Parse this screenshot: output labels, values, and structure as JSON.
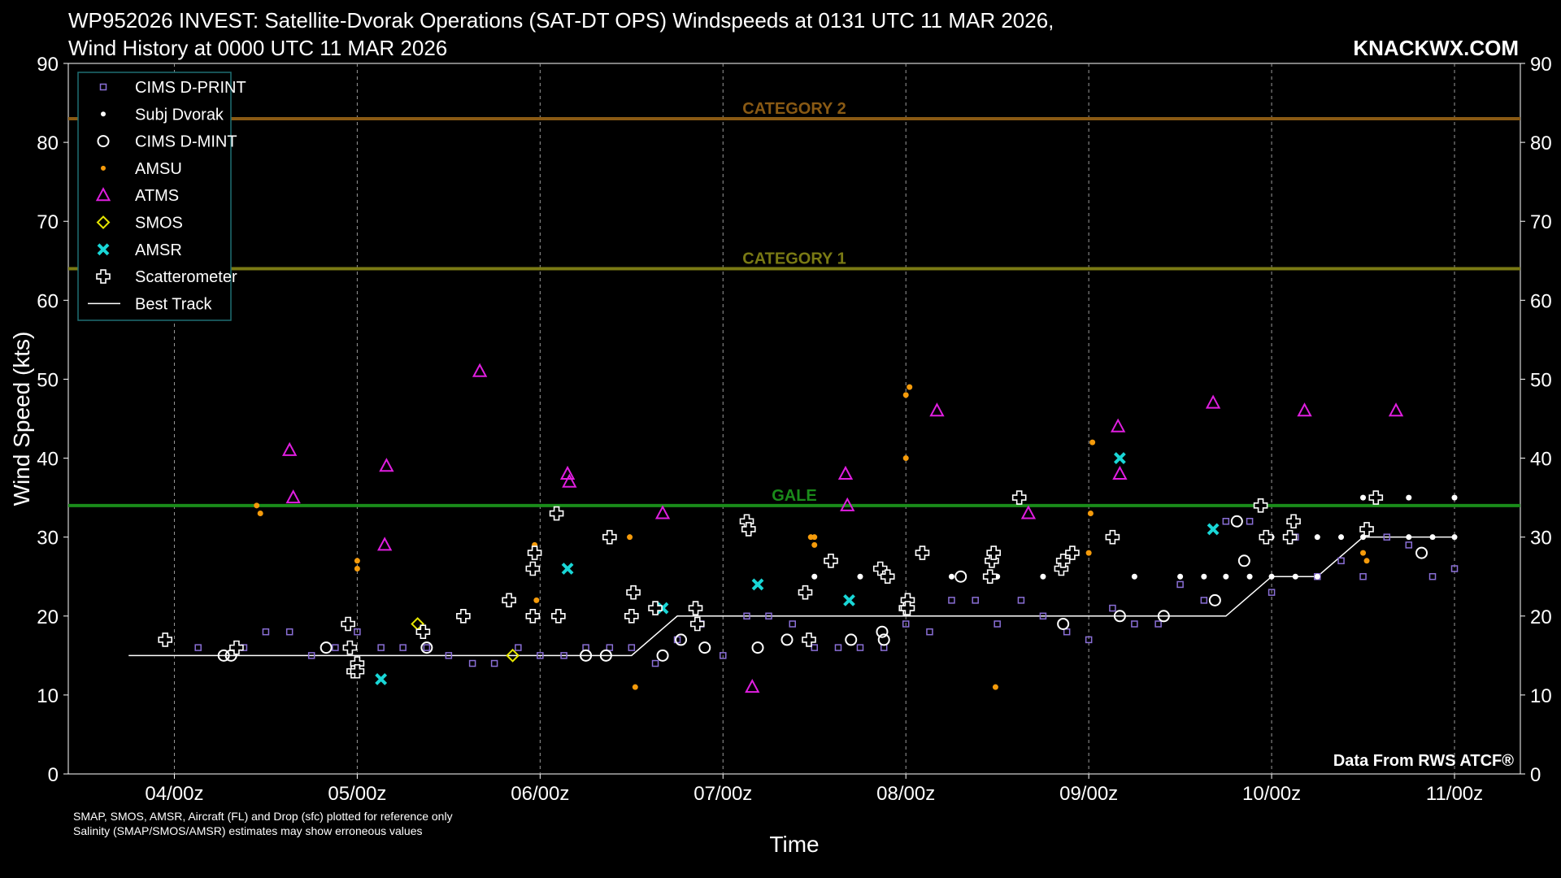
{
  "header": {
    "title_line1": "WP952026 INVEST: Satellite-Dvorak Operations (SAT-DT OPS) Windspeeds at 0131 UTC 11 MAR 2026,",
    "title_line2": "Wind History at 0000 UTC 11 MAR 2026",
    "brand": "KNACKWX.COM"
  },
  "footer": {
    "note_line1": "SMAP, SMOS, AMSR, Aircraft (FL) and Drop (sfc) plotted for reference only",
    "note_line2": "Salinity (SMAP/SMOS/AMSR) estimates may show erroneous values",
    "credit": "Data From RWS ATCF®"
  },
  "colors": {
    "background": "#000000",
    "cims_dprint": "#8a6fd6",
    "subj_dvorak": "#ffffff",
    "cims_dmint": "#ffffff",
    "amsu": "#f59b0b",
    "atms": "#e01ee0",
    "smos": "#e6e600",
    "amsr": "#19d6d6",
    "scat": "#ffffff",
    "best_track": "#ffffff",
    "cat2": "#8a5a14",
    "cat1": "#7a7a14",
    "gale": "#1a8c1a",
    "legend_border": "#1f6f73"
  },
  "chart_data": {
    "type": "scatter",
    "xlabel": "Time",
    "ylabel": "Wind Speed (kts)",
    "x_unit": "days (04/00z = 4.0)",
    "xlim": [
      3.42,
      11.36
    ],
    "ylim": [
      0,
      90
    ],
    "x_ticks": [
      4,
      5,
      6,
      7,
      8,
      9,
      10,
      11
    ],
    "x_tick_labels": [
      "04/00z",
      "05/00z",
      "06/00z",
      "07/00z",
      "08/00z",
      "09/00z",
      "10/00z",
      "11/00z"
    ],
    "y_ticks": [
      0,
      10,
      20,
      30,
      40,
      50,
      60,
      70,
      80,
      90
    ],
    "grid": "vertical dashed at day boundaries",
    "legend_position": "top-left",
    "thresholds": [
      {
        "label": "CATEGORY 2",
        "y": 83,
        "color_key": "cat2"
      },
      {
        "label": "CATEGORY 1",
        "y": 64,
        "color_key": "cat1"
      },
      {
        "label": "GALE",
        "y": 34,
        "color_key": "gale"
      }
    ],
    "series": [
      {
        "name": "CIMS D-PRINT",
        "marker": "square",
        "color_key": "cims_dprint",
        "points": [
          [
            4.13,
            16
          ],
          [
            4.38,
            16
          ],
          [
            4.5,
            18
          ],
          [
            4.63,
            18
          ],
          [
            4.75,
            15
          ],
          [
            4.88,
            16
          ],
          [
            5.0,
            18
          ],
          [
            5.13,
            16
          ],
          [
            5.25,
            16
          ],
          [
            5.38,
            16
          ],
          [
            5.5,
            15
          ],
          [
            5.63,
            14
          ],
          [
            5.75,
            14
          ],
          [
            5.88,
            16
          ],
          [
            6.0,
            15
          ],
          [
            6.13,
            15
          ],
          [
            6.25,
            16
          ],
          [
            6.38,
            16
          ],
          [
            6.5,
            16
          ],
          [
            6.63,
            14
          ],
          [
            6.75,
            17
          ],
          [
            6.88,
            19
          ],
          [
            7.0,
            15
          ],
          [
            7.13,
            20
          ],
          [
            7.25,
            20
          ],
          [
            7.38,
            19
          ],
          [
            7.5,
            16
          ],
          [
            7.63,
            16
          ],
          [
            7.75,
            16
          ],
          [
            7.88,
            16
          ],
          [
            8.0,
            19
          ],
          [
            8.13,
            18
          ],
          [
            8.25,
            22
          ],
          [
            8.38,
            22
          ],
          [
            8.5,
            19
          ],
          [
            8.63,
            22
          ],
          [
            8.75,
            20
          ],
          [
            8.88,
            18
          ],
          [
            9.0,
            17
          ],
          [
            9.13,
            21
          ],
          [
            9.25,
            19
          ],
          [
            9.38,
            19
          ],
          [
            9.5,
            24
          ],
          [
            9.63,
            22
          ],
          [
            9.75,
            32
          ],
          [
            9.88,
            32
          ],
          [
            10.0,
            23
          ],
          [
            10.13,
            30
          ],
          [
            10.25,
            25
          ],
          [
            10.38,
            27
          ],
          [
            10.5,
            25
          ],
          [
            10.63,
            30
          ],
          [
            10.75,
            29
          ],
          [
            10.88,
            25
          ],
          [
            11.0,
            26
          ]
        ]
      },
      {
        "name": "Subj Dvorak",
        "marker": "dot",
        "color_key": "subj_dvorak",
        "points": [
          [
            7.5,
            25
          ],
          [
            7.75,
            25
          ],
          [
            8.25,
            25
          ],
          [
            8.5,
            25
          ],
          [
            8.75,
            25
          ],
          [
            9.25,
            25
          ],
          [
            9.5,
            25
          ],
          [
            9.63,
            25
          ],
          [
            9.75,
            25
          ],
          [
            9.88,
            25
          ],
          [
            10.0,
            30
          ],
          [
            10.0,
            25
          ],
          [
            10.13,
            25
          ],
          [
            10.25,
            30
          ],
          [
            10.25,
            25
          ],
          [
            10.38,
            30
          ],
          [
            10.5,
            35
          ],
          [
            10.5,
            30
          ],
          [
            10.75,
            35
          ],
          [
            10.75,
            30
          ],
          [
            10.88,
            30
          ],
          [
            11.0,
            35
          ],
          [
            11.0,
            30
          ]
        ]
      },
      {
        "name": "CIMS D-MINT",
        "marker": "circle",
        "color_key": "cims_dmint",
        "points": [
          [
            4.27,
            15
          ],
          [
            4.31,
            15
          ],
          [
            4.83,
            16
          ],
          [
            5.38,
            16
          ],
          [
            6.25,
            15
          ],
          [
            6.36,
            15
          ],
          [
            6.67,
            15
          ],
          [
            6.77,
            17
          ],
          [
            6.9,
            16
          ],
          [
            7.19,
            16
          ],
          [
            7.35,
            17
          ],
          [
            7.7,
            17
          ],
          [
            7.87,
            18
          ],
          [
            7.88,
            17
          ],
          [
            8.3,
            25
          ],
          [
            8.86,
            19
          ],
          [
            9.17,
            20
          ],
          [
            9.41,
            20
          ],
          [
            9.69,
            22
          ],
          [
            9.81,
            32
          ],
          [
            9.85,
            27
          ],
          [
            10.82,
            28
          ]
        ]
      },
      {
        "name": "AMSU",
        "marker": "dot",
        "color_key": "amsu",
        "points": [
          [
            4.45,
            34
          ],
          [
            4.47,
            33
          ],
          [
            5.0,
            27
          ],
          [
            5.0,
            26
          ],
          [
            5.97,
            29
          ],
          [
            5.98,
            22
          ],
          [
            6.49,
            30
          ],
          [
            6.52,
            11
          ],
          [
            7.48,
            30
          ],
          [
            7.5,
            30
          ],
          [
            7.5,
            29
          ],
          [
            8.0,
            48
          ],
          [
            8.02,
            49
          ],
          [
            8.0,
            40
          ],
          [
            8.49,
            11
          ],
          [
            9.0,
            28
          ],
          [
            9.01,
            33
          ],
          [
            9.02,
            42
          ],
          [
            10.5,
            28
          ],
          [
            10.52,
            27
          ]
        ]
      },
      {
        "name": "ATMS",
        "marker": "triangle",
        "color_key": "atms",
        "points": [
          [
            4.63,
            41
          ],
          [
            4.65,
            35
          ],
          [
            5.15,
            29
          ],
          [
            5.16,
            39
          ],
          [
            5.67,
            51
          ],
          [
            6.15,
            38
          ],
          [
            6.16,
            37
          ],
          [
            6.67,
            33
          ],
          [
            7.16,
            11
          ],
          [
            7.67,
            38
          ],
          [
            7.68,
            34
          ],
          [
            8.17,
            46
          ],
          [
            8.67,
            33
          ],
          [
            9.16,
            44
          ],
          [
            9.17,
            38
          ],
          [
            9.68,
            47
          ],
          [
            10.18,
            46
          ],
          [
            10.68,
            46
          ]
        ]
      },
      {
        "name": "SMOS",
        "marker": "diamond",
        "color_key": "smos",
        "points": [
          [
            5.33,
            19
          ],
          [
            5.85,
            15
          ]
        ]
      },
      {
        "name": "AMSR",
        "marker": "x",
        "color_key": "amsr",
        "points": [
          [
            5.13,
            12
          ],
          [
            6.15,
            26
          ],
          [
            6.67,
            21
          ],
          [
            7.19,
            24
          ],
          [
            7.69,
            22
          ],
          [
            9.17,
            40
          ],
          [
            9.68,
            31
          ]
        ]
      },
      {
        "name": "Scatterometer",
        "marker": "plus",
        "color_key": "scat",
        "points": [
          [
            3.95,
            17
          ],
          [
            4.34,
            16
          ],
          [
            4.95,
            19
          ],
          [
            4.96,
            16
          ],
          [
            4.98,
            13
          ],
          [
            5.0,
            14
          ],
          [
            5.0,
            13
          ],
          [
            5.36,
            18
          ],
          [
            5.58,
            20
          ],
          [
            5.83,
            22
          ],
          [
            5.96,
            26
          ],
          [
            5.97,
            28
          ],
          [
            5.96,
            20
          ],
          [
            6.09,
            33
          ],
          [
            6.1,
            20
          ],
          [
            6.38,
            30
          ],
          [
            6.5,
            20
          ],
          [
            6.51,
            23
          ],
          [
            6.63,
            21
          ],
          [
            6.85,
            21
          ],
          [
            6.86,
            19
          ],
          [
            7.13,
            32
          ],
          [
            7.14,
            31
          ],
          [
            7.45,
            23
          ],
          [
            7.47,
            17
          ],
          [
            7.59,
            27
          ],
          [
            7.86,
            26
          ],
          [
            7.9,
            25
          ],
          [
            8.0,
            21
          ],
          [
            8.01,
            22
          ],
          [
            8.01,
            21
          ],
          [
            8.09,
            28
          ],
          [
            8.46,
            25
          ],
          [
            8.47,
            27
          ],
          [
            8.48,
            28
          ],
          [
            8.62,
            35
          ],
          [
            8.85,
            26
          ],
          [
            8.86,
            27
          ],
          [
            8.91,
            28
          ],
          [
            9.13,
            30
          ],
          [
            9.94,
            34
          ],
          [
            9.97,
            30
          ],
          [
            10.1,
            30
          ],
          [
            10.12,
            32
          ],
          [
            10.52,
            31
          ],
          [
            10.57,
            35
          ]
        ]
      },
      {
        "name": "Best Track",
        "marker": "line",
        "color_key": "best_track",
        "points": [
          [
            3.75,
            15
          ],
          [
            6.5,
            15
          ],
          [
            6.75,
            20
          ],
          [
            9.75,
            20
          ],
          [
            10.0,
            25
          ],
          [
            10.25,
            25
          ],
          [
            10.5,
            30
          ],
          [
            11.0,
            30
          ]
        ]
      }
    ]
  }
}
